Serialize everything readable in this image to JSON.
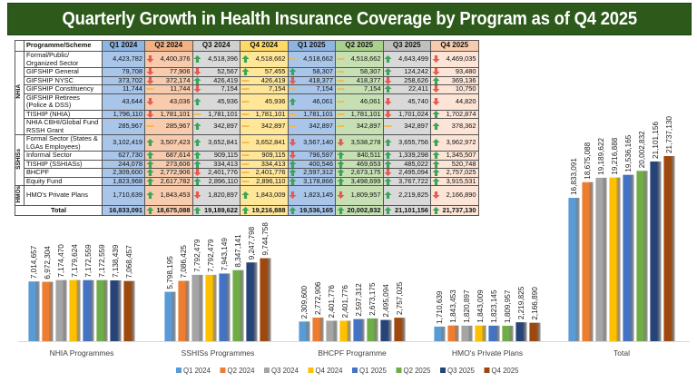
{
  "title": "Quarterly Growth in Health Insurance Coverage by Program as of Q4 2025",
  "table": {
    "header_label": "Programme/Scheme",
    "quarters": [
      "Q1 2024",
      "Q2 2024",
      "Q3 2024",
      "Q4 2024",
      "Q1 2025",
      "Q2 2025",
      "Q3 2025",
      "Q4 2025"
    ],
    "groups": [
      {
        "label": "NHIA",
        "rows": [
          {
            "name": "Formal/Public/ Organized Sector",
            "values": [
              "4,423,782",
              "4,400,376",
              "4,518,396",
              "4,518,662",
              "4,518,662",
              "4,518,662",
              "4,643,499",
              "4,469,035"
            ],
            "trends": [
              "",
              "down",
              "up",
              "up",
              "flat",
              "flat",
              "up",
              "down"
            ],
            "tall": true
          },
          {
            "name": "GIFSHIP General",
            "values": [
              "79,708",
              "77,906",
              "52,567",
              "57,455",
              "58,307",
              "58,307",
              "124,242",
              "93,480"
            ],
            "trends": [
              "",
              "down",
              "down",
              "up",
              "up",
              "flat",
              "up",
              "down"
            ]
          },
          {
            "name": "GIFSHIP NYSC",
            "values": [
              "373,702",
              "372,174",
              "426,419",
              "426,419",
              "418,377",
              "418,377",
              "258,626",
              "369,136"
            ],
            "trends": [
              "",
              "down",
              "up",
              "flat",
              "down",
              "flat",
              "down",
              "up"
            ]
          },
          {
            "name": "GIFSHIP Constituency",
            "values": [
              "11,744",
              "11,744",
              "7,154",
              "7,154",
              "7,154",
              "7,154",
              "22,411",
              "10,750"
            ],
            "trends": [
              "",
              "flat",
              "down",
              "flat",
              "flat",
              "flat",
              "up",
              "down"
            ]
          },
          {
            "name": "GIFSHIP Retirees (Police & DSS)",
            "values": [
              "43,644",
              "43,036",
              "45,936",
              "45,936",
              "46,061",
              "46,061",
              "45,740",
              "44,820"
            ],
            "trends": [
              "",
              "down",
              "up",
              "flat",
              "up",
              "flat",
              "down",
              "down"
            ],
            "tall": true
          },
          {
            "name": "TISHIP (NHIA)",
            "values": [
              "1,796,110",
              "1,781,101",
              "1,781,101",
              "1,781,101",
              "1,781,101",
              "1,781,101",
              "1,701,024",
              "1,702,874"
            ],
            "trends": [
              "",
              "down",
              "flat",
              "flat",
              "flat",
              "flat",
              "down",
              "up"
            ]
          },
          {
            "name": "NHIA CBHI/Global Fund RSSH Grant",
            "values": [
              "285,967",
              "285,967",
              "342,897",
              "342,897",
              "342,897",
              "342,897",
              "342,897",
              "378,362"
            ],
            "trends": [
              "",
              "flat",
              "up",
              "flat",
              "flat",
              "flat",
              "flat",
              "up"
            ],
            "tall": true
          }
        ]
      },
      {
        "label": "SSHISs",
        "rows": [
          {
            "name": "Formal Sector (States & LGAs Employees)",
            "values": [
              "3,102,419",
              "3,507,423",
              "3,652,841",
              "3,652,841",
              "3,567,140",
              "3,538,278",
              "3,655,756",
              "3,962,972"
            ],
            "trends": [
              "",
              "up",
              "up",
              "flat",
              "down",
              "down",
              "up",
              "up"
            ],
            "tall": true
          },
          {
            "name": "Informal Sector",
            "values": [
              "627,730",
              "687,614",
              "909,115",
              "909,115",
              "796,597",
              "840,511",
              "1,339,298",
              "1,345,507"
            ],
            "trends": [
              "",
              "up",
              "up",
              "flat",
              "down",
              "up",
              "up",
              "up"
            ]
          },
          {
            "name": "TISHIP (SSHIASs)",
            "values": [
              "244,078",
              "273,606",
              "334,413",
              "334,413",
              "400,546",
              "469,653",
              "485,022",
              "520,748"
            ],
            "trends": [
              "",
              "up",
              "up",
              "flat",
              "up",
              "up",
              "up",
              "up"
            ]
          },
          {
            "name": "BHCPF",
            "values": [
              "2,309,600",
              "2,772,906",
              "2,401,776",
              "2,401,776",
              "2,597,312",
              "2,673,175",
              "2,495,094",
              "2,757,025"
            ],
            "trends": [
              "",
              "up",
              "down",
              "flat",
              "up",
              "up",
              "down",
              "up"
            ]
          },
          {
            "name": "Equity Fund",
            "values": [
              "1,823,968",
              "2,617,782",
              "2,896,110",
              "2,896,110",
              "3,178,866",
              "3,498,699",
              "3,767,722",
              "3,915,531"
            ],
            "trends": [
              "",
              "up",
              "up",
              "flat",
              "up",
              "up",
              "up",
              "up"
            ]
          }
        ]
      },
      {
        "label": "HMOs",
        "rows": [
          {
            "name": "HMO's Private Plans",
            "values": [
              "1,710,639",
              "1,843,453",
              "1,820,897",
              "1,843,009",
              "1,823,145",
              "1,809,957",
              "2,219,825",
              "2,166,890"
            ],
            "trends": [
              "",
              "up",
              "down",
              "up",
              "down",
              "down",
              "up",
              "down"
            ],
            "tall": true
          }
        ]
      }
    ],
    "total": {
      "name": "Total",
      "values": [
        "16,833,091",
        "18,675,088",
        "19,189,622",
        "19,216,888",
        "19,536,165",
        "20,002,832",
        "21,101,156",
        "21,737,130"
      ],
      "trends": [
        "",
        "up",
        "up",
        "up",
        "up",
        "up",
        "up",
        "up"
      ]
    }
  },
  "colors": {
    "series": [
      "#5b9bd5",
      "#ed7d31",
      "#a5a5a5",
      "#ffc000",
      "#4472c4",
      "#70ad47",
      "#264478",
      "#9e480e"
    ],
    "title_bg": "#2d5a1b",
    "up": "#3aa655",
    "down": "#e8594f",
    "flat": "#f2b84b"
  },
  "chart_data": {
    "type": "bar",
    "title": "",
    "xlabel": "",
    "ylabel": "",
    "categories": [
      "NHIA Programmes",
      "SSHISs Programmes",
      "BHCPF Programme",
      "HMO's Private Plans",
      "Total"
    ],
    "series": [
      {
        "name": "Q1 2024",
        "values": [
          7014657,
          5798195,
          2309600,
          1710639,
          16833091
        ],
        "labels": [
          "7,014,657",
          "5,798,195",
          "2,309,600",
          "1,710,639",
          "16,833,091"
        ]
      },
      {
        "name": "Q2 2024",
        "values": [
          6972304,
          7086425,
          2772906,
          1843453,
          18675088
        ],
        "labels": [
          "6,972,304",
          "7,086,425",
          "2,772,906",
          "1,843,453",
          "18,675,088"
        ]
      },
      {
        "name": "Q3 2024",
        "values": [
          7174470,
          7792479,
          2401776,
          1820897,
          19189622
        ],
        "labels": [
          "7,174,470",
          "7,792,479",
          "2,401,776",
          "1,820,897",
          "19,189,622"
        ]
      },
      {
        "name": "Q4 2024",
        "values": [
          7179624,
          7792479,
          2401776,
          1843009,
          19216888
        ],
        "labels": [
          "7,179,624",
          "7,792,479",
          "2,401,776",
          "1,843,009",
          "19,216,888"
        ]
      },
      {
        "name": "Q1 2025",
        "values": [
          7172559,
          7943149,
          2597312,
          1823145,
          19536165
        ],
        "labels": [
          "7,172,559",
          "7,943,149",
          "2,597,312",
          "1,823,145",
          "19,536,165"
        ]
      },
      {
        "name": "Q2 2025",
        "values": [
          7172559,
          8347141,
          2673175,
          1809957,
          20002832
        ],
        "labels": [
          "7,172,559",
          "8,347,141",
          "2,673,175",
          "1,809,957",
          "20,002,832"
        ]
      },
      {
        "name": "Q3 2025",
        "values": [
          7138439,
          9247798,
          2495094,
          2219825,
          21101156
        ],
        "labels": [
          "7,138,439",
          "9,247,798",
          "2,495,094",
          "2,219,825",
          "21,101,156"
        ]
      },
      {
        "name": "Q4 2025",
        "values": [
          7068457,
          9744758,
          2757025,
          2166890,
          21737130
        ],
        "labels": [
          "7,068,457",
          "9,744,758",
          "2,757,025",
          "2,166,890",
          "21,737,130"
        ]
      }
    ],
    "legend": [
      "Q1 2024",
      "Q2 2024",
      "Q3 2024",
      "Q4 2024",
      "Q1 2025",
      "Q2 2025",
      "Q3 2025",
      "Q4 2025"
    ],
    "legend_position": "bottom",
    "grid": false,
    "data_labels": true
  }
}
